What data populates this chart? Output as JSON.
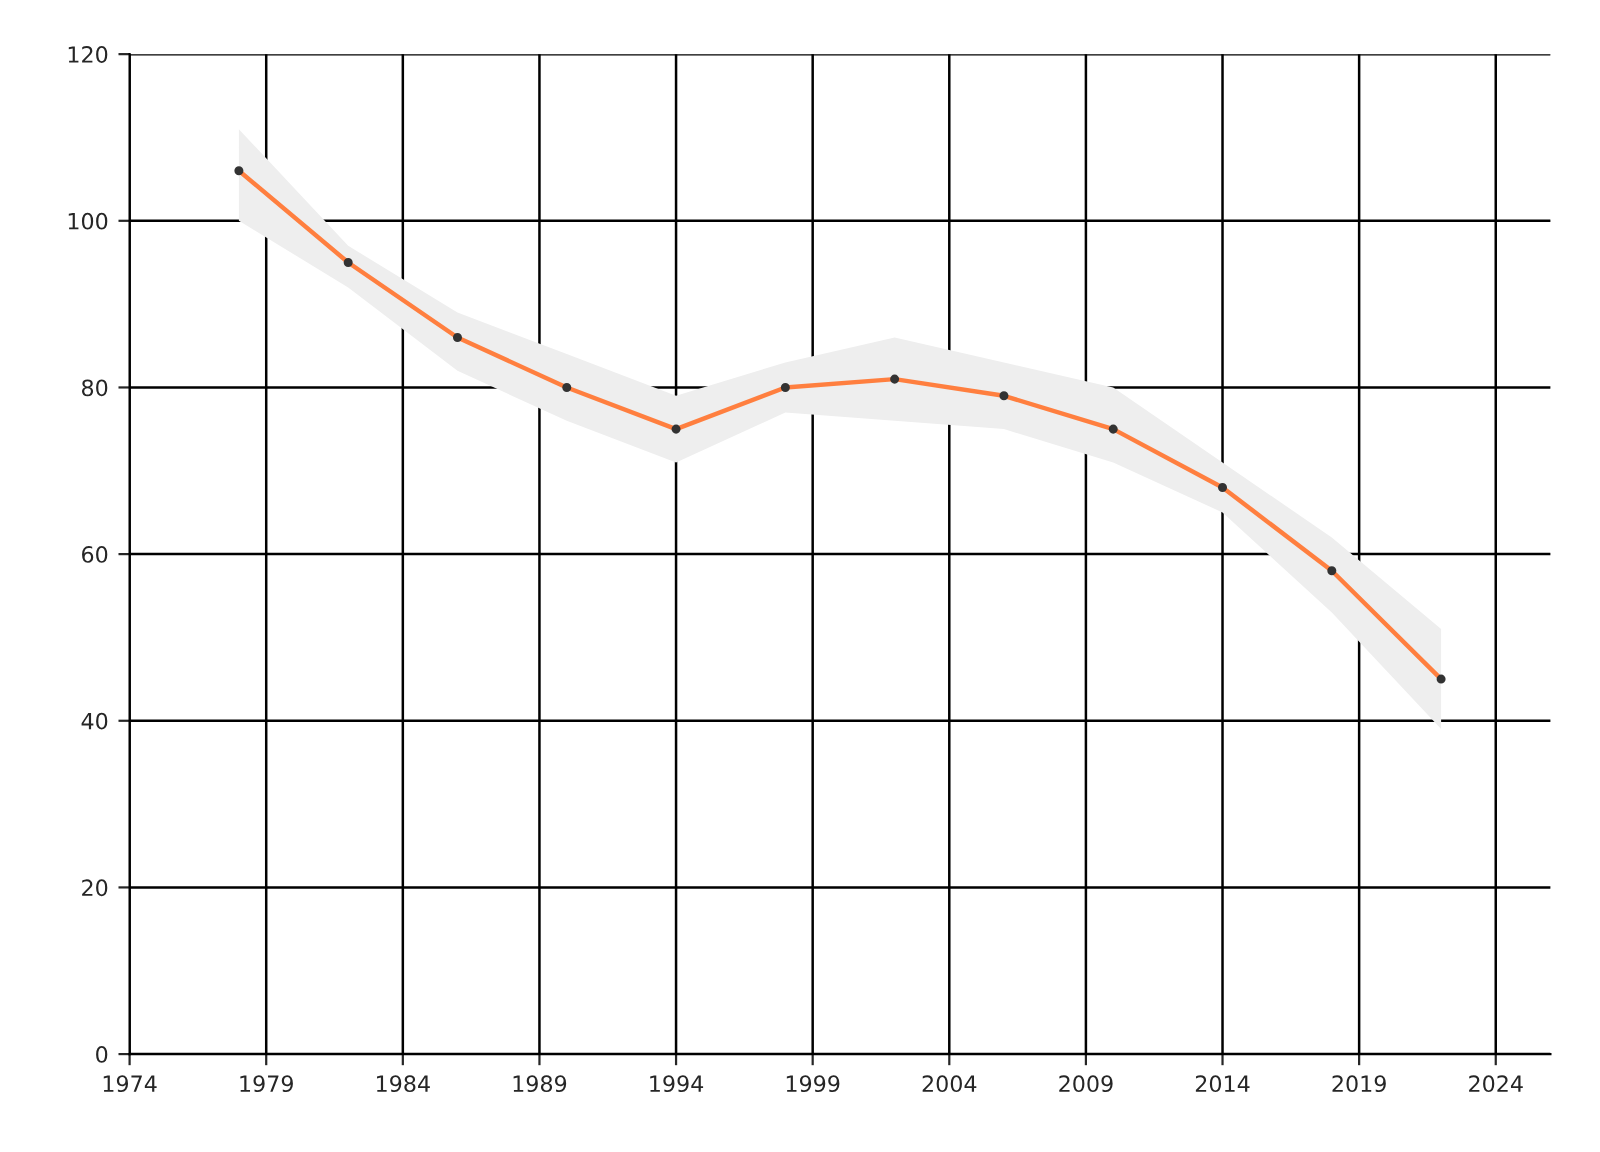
{
  "chart_data": {
    "type": "line",
    "x": [
      1978,
      1982,
      1986,
      1990,
      1994,
      1998,
      2002,
      2006,
      2010,
      2014,
      2018,
      2022
    ],
    "series": [
      {
        "color": "#ff7f3f",
        "values": [
          106,
          95,
          86,
          80,
          75,
          80,
          81,
          79,
          75,
          68,
          58,
          45
        ],
        "lower": [
          100,
          92,
          82,
          76,
          71,
          77,
          76,
          75,
          71,
          65,
          53,
          39
        ],
        "upper": [
          111,
          97,
          89,
          84,
          79,
          83,
          86,
          83,
          80,
          71,
          62,
          51
        ]
      }
    ],
    "xlim": [
      1974,
      2026
    ],
    "xticks": [
      1974,
      1979,
      1984,
      1989,
      1994,
      1999,
      2004,
      2009,
      2014,
      2019,
      2024
    ],
    "ylim": [
      0,
      120
    ],
    "yticks": [
      0,
      20,
      40,
      60,
      80,
      100,
      120
    ],
    "grid": true,
    "marker": "circle",
    "line_style": "solid"
  }
}
